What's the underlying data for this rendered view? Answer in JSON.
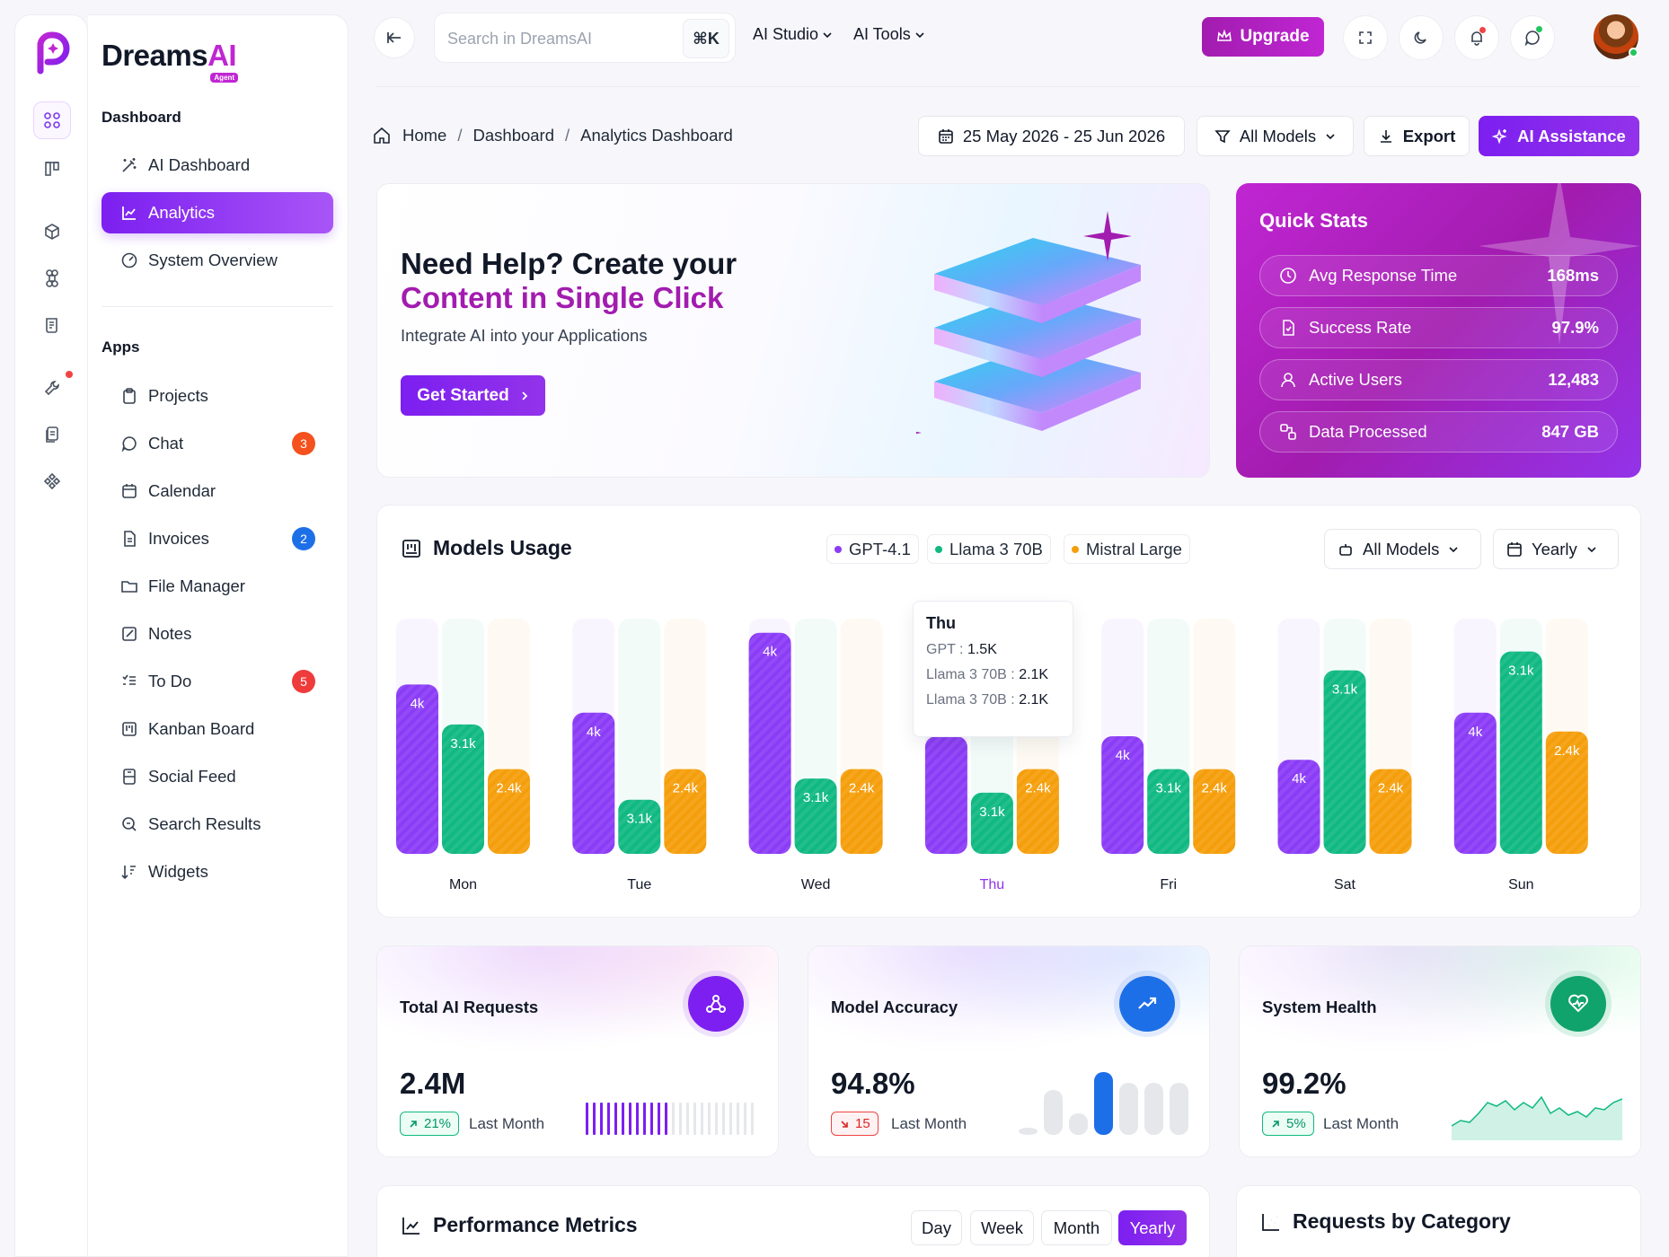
{
  "brand": {
    "name": "Dreams",
    "accent": "AI",
    "tag": "Agent"
  },
  "sidebar": {
    "section_dashboard": "Dashboard",
    "dashboard_items": [
      {
        "label": "AI Dashboard",
        "icon": "magic-wand-icon"
      },
      {
        "label": "Analytics",
        "icon": "chart-icon",
        "active": true
      },
      {
        "label": "System Overview",
        "icon": "gauge-icon"
      }
    ],
    "section_apps": "Apps",
    "apps_items": [
      {
        "label": "Projects",
        "icon": "clipboard-icon"
      },
      {
        "label": "Chat",
        "icon": "chat-icon",
        "badge": "3",
        "badge_color": "#f4511e"
      },
      {
        "label": "Calendar",
        "icon": "calendar-icon"
      },
      {
        "label": "Invoices",
        "icon": "invoice-icon",
        "badge": "2",
        "badge_color": "#1d6fe8"
      },
      {
        "label": "File Manager",
        "icon": "folder-icon"
      },
      {
        "label": "Notes",
        "icon": "notes-icon"
      },
      {
        "label": "To Do",
        "icon": "checklist-icon",
        "badge": "5",
        "badge_color": "#ef3b3b"
      },
      {
        "label": "Kanban Board",
        "icon": "kanban-icon"
      },
      {
        "label": "Social Feed",
        "icon": "social-icon"
      },
      {
        "label": "Search Results",
        "icon": "search-icon"
      },
      {
        "label": "Widgets",
        "icon": "widgets-icon"
      }
    ]
  },
  "topbar": {
    "search_placeholder": "Search in DreamsAI",
    "shortcut": "⌘K",
    "menu_studio": "AI Studio",
    "menu_tools": "AI Tools",
    "upgrade": "Upgrade"
  },
  "breadcrumb": {
    "home": "Home",
    "dashboard": "Dashboard",
    "current": "Analytics Dashboard"
  },
  "actions": {
    "date_range": "25 May 2026 - 25 Jun 2026",
    "models": "All Models",
    "export": "Export",
    "assistance": "AI Assistance"
  },
  "hero": {
    "title_line1": "Need Help? Create your",
    "title_line2": "Content in Single Click",
    "subtitle": "Integrate AI into your Applications",
    "cta": "Get Started"
  },
  "quick_stats": {
    "title": "Quick Stats",
    "rows": [
      {
        "label": "Avg Response Time",
        "value": "168ms",
        "icon": "clock-icon"
      },
      {
        "label": "Success Rate",
        "value": "97.9%",
        "icon": "file-check-icon"
      },
      {
        "label": "Active Users",
        "value": "12,483",
        "icon": "user-icon"
      },
      {
        "label": "Data Processed",
        "value": "847 GB",
        "icon": "data-icon"
      }
    ]
  },
  "usage": {
    "title": "Models Usage",
    "legend": [
      {
        "name": "GPT-4.1",
        "color": "#8b3cf6"
      },
      {
        "name": "Llama 3 70B",
        "color": "#10b981"
      },
      {
        "name": "Mistral Large",
        "color": "#f59e0b"
      }
    ],
    "filter_models": "All Models",
    "filter_period": "Yearly",
    "tooltip": {
      "day": "Thu",
      "rows": [
        {
          "label": "GPT :",
          "value": "1.5K"
        },
        {
          "label": "Llama 3 70B :",
          "value": "2.1K"
        },
        {
          "label": "Llama 3 70B :",
          "value": "2.1K"
        }
      ]
    }
  },
  "chart_data": {
    "type": "bar",
    "categories": [
      "Mon",
      "Tue",
      "Wed",
      "Thu",
      "Fri",
      "Sat",
      "Sun"
    ],
    "highlight": "Thu",
    "series": [
      {
        "name": "GPT-4.1",
        "color": "#8b3cf6",
        "values": [
          0.72,
          0.6,
          0.94,
          0.5,
          0.5,
          0.4,
          0.6
        ],
        "labels": [
          "4k",
          "4k",
          "4k",
          "",
          "4k",
          "4k",
          "4k"
        ]
      },
      {
        "name": "Llama 3 70B",
        "color": "#10b981",
        "values": [
          0.55,
          0.23,
          0.32,
          0.26,
          0.36,
          0.78,
          0.86
        ],
        "labels": [
          "3.1k",
          "3.1k",
          "3.1k",
          "3.1k",
          "3.1k",
          "3.1k",
          "3.1k"
        ]
      },
      {
        "name": "Mistral Large",
        "color": "#f59e0b",
        "values": [
          0.36,
          0.36,
          0.36,
          0.36,
          0.36,
          0.36,
          0.52
        ],
        "labels": [
          "2.4k",
          "2.4k",
          "2.4k",
          "2.4k",
          "2.4k",
          "2.4k",
          "2.4k"
        ]
      }
    ]
  },
  "stat_cards": [
    {
      "title": "Total AI Requests",
      "value": "2.4M",
      "change": "21%",
      "direction": "up",
      "period": "Last Month",
      "icon": "webhook-icon",
      "color": "#7c1ff0"
    },
    {
      "title": "Model Accuracy",
      "value": "94.8%",
      "change": "15",
      "direction": "down",
      "period": "Last Month",
      "icon": "trend-up-icon",
      "color": "#1d6fe8"
    },
    {
      "title": "System Health",
      "value": "99.2%",
      "change": "5%",
      "direction": "up",
      "period": "Last Month",
      "icon": "heart-pulse-icon",
      "color": "#10a36b"
    }
  ],
  "performance": {
    "title": "Performance Metrics",
    "tabs": [
      {
        "label": "Day"
      },
      {
        "label": "Week"
      },
      {
        "label": "Month"
      },
      {
        "label": "Yearly",
        "active": true
      }
    ]
  },
  "requests_by_category": {
    "title": "Requests by Category"
  }
}
